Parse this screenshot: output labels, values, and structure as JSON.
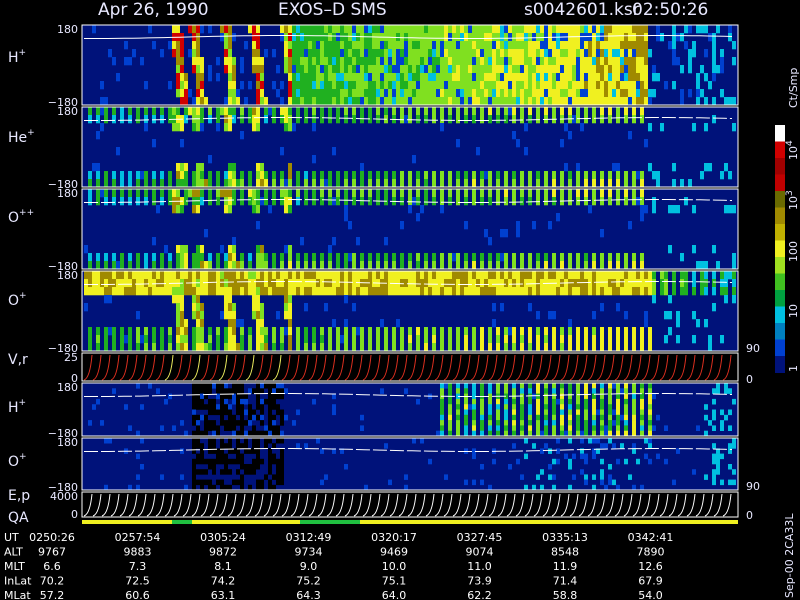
{
  "header": {
    "date": "Apr 26, 1990",
    "instrument": "EXOS–D SMS",
    "file": "s0042601.ksr",
    "time": "02:50:26"
  },
  "panels": [
    {
      "label": "H",
      "sup": "+",
      "top": "180",
      "bottom": "−180"
    },
    {
      "label": "He",
      "sup": "+",
      "top": "180",
      "bottom": "−180"
    },
    {
      "label": "O",
      "sup": "++",
      "top": "180",
      "bottom": "−180"
    },
    {
      "label": "O",
      "sup": "+",
      "top": "180",
      "bottom": "−180"
    },
    {
      "label": "V,r",
      "top": "25",
      "bottom": "0",
      "right_top": "90",
      "right_bottom": "0"
    },
    {
      "label": "H",
      "sup": "+",
      "top": "180",
      "bottom": "−180"
    },
    {
      "label": "O",
      "sup": "+",
      "top": "180",
      "bottom": "−180"
    },
    {
      "label": "E,p",
      "top": "4000",
      "bottom": "0",
      "right_top": "90",
      "right_bottom": "0"
    },
    {
      "label": "QA"
    }
  ],
  "colorbar": {
    "unit": "Ct/Smp",
    "labels": [
      {
        "base": "10",
        "sup": "4"
      },
      {
        "base": "10",
        "sup": "3"
      },
      "100",
      "10",
      "1"
    ]
  },
  "footer": {
    "rows": [
      {
        "name": "UT",
        "values": [
          "0250:26",
          "0257:54",
          "0305:24",
          "0312:49",
          "0320:17",
          "0327:45",
          "0335:13",
          "0342:41"
        ]
      },
      {
        "name": "ALT",
        "values": [
          "9767",
          "9883",
          "9872",
          "9734",
          "9469",
          "9074",
          "8548",
          "7890"
        ]
      },
      {
        "name": "MLT",
        "values": [
          "6.6",
          "7.3",
          "8.1",
          "9.0",
          "10.0",
          "11.0",
          "11.9",
          "12.6"
        ]
      },
      {
        "name": "InLat",
        "values": [
          "70.2",
          "72.5",
          "74.2",
          "75.2",
          "75.1",
          "73.9",
          "71.4",
          "67.9"
        ]
      },
      {
        "name": "MLat",
        "values": [
          "57.2",
          "60.6",
          "63.1",
          "64.3",
          "64.0",
          "62.2",
          "58.8",
          "54.0"
        ]
      }
    ]
  },
  "footer_note": "Sep-00 2CA33L"
}
